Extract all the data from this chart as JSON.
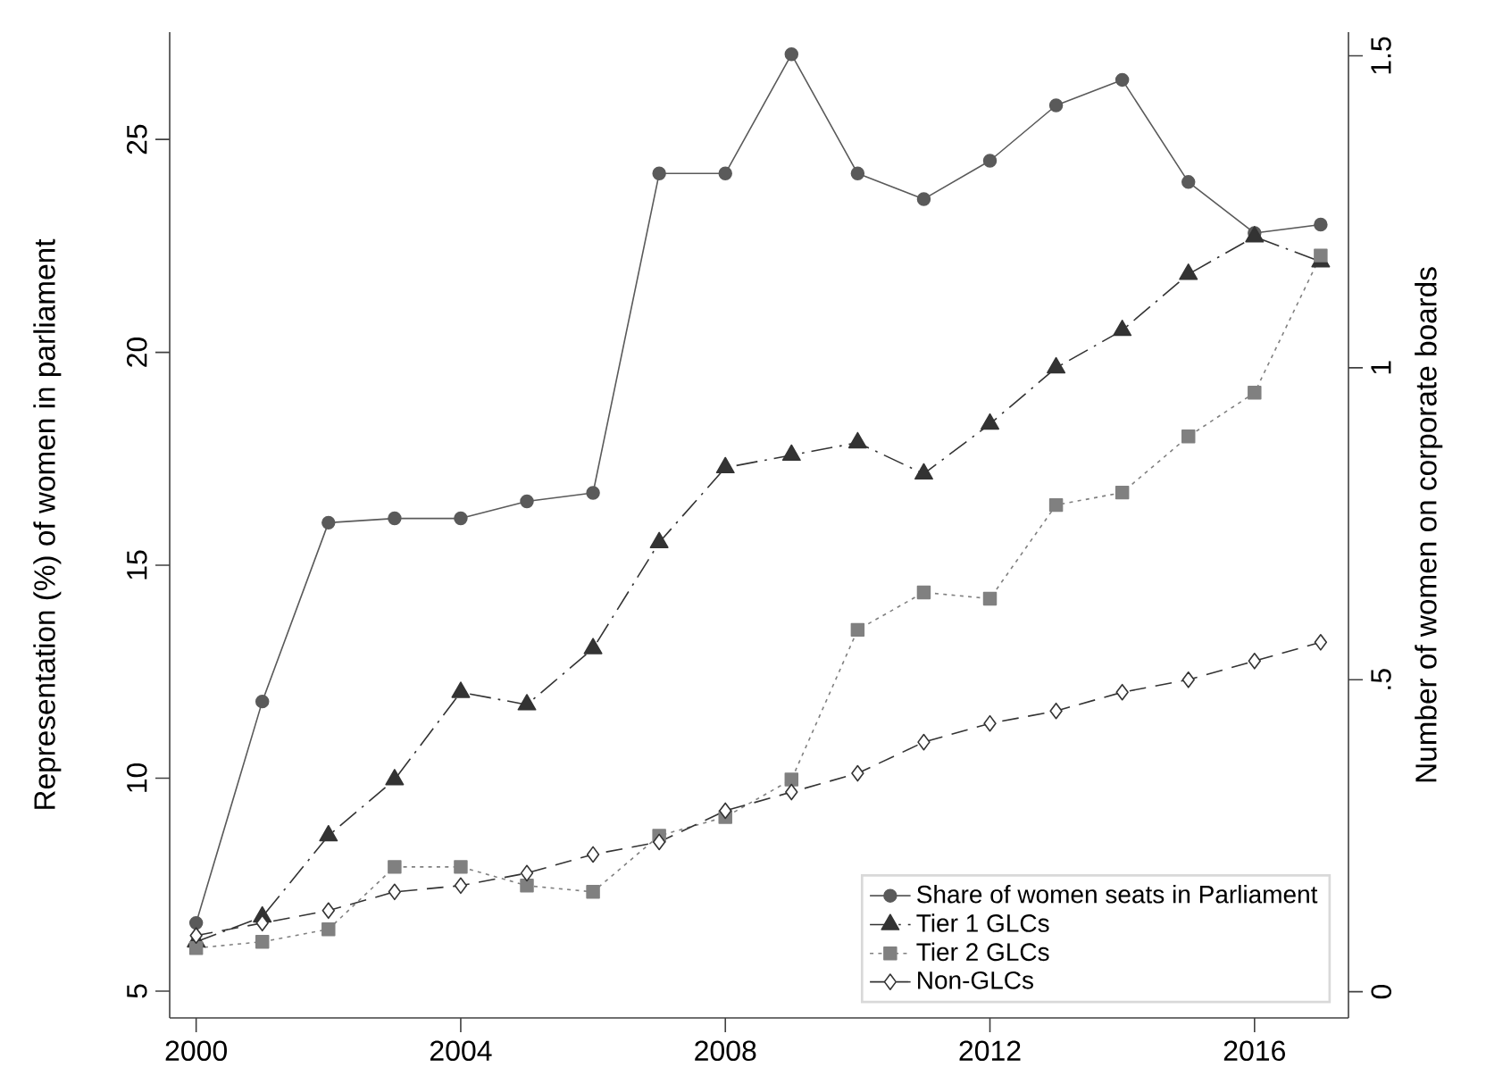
{
  "chart_data": {
    "type": "line",
    "x": [
      2000,
      2001,
      2002,
      2003,
      2004,
      2005,
      2006,
      2007,
      2008,
      2009,
      2010,
      2011,
      2012,
      2013,
      2014,
      2015,
      2016,
      2017
    ],
    "xlim": [
      1999.6,
      2017.42
    ],
    "xticks": [
      2000,
      2004,
      2008,
      2012,
      2016
    ],
    "ylabel": "Representation (%) of women in parliament",
    "y2label": "Number of women on corporate boards",
    "ylim": [
      4.37,
      27.52
    ],
    "yticks": [
      5,
      10,
      15,
      20,
      25
    ],
    "y2lim": [
      -0.042,
      1.538
    ],
    "y2ticks": [
      0,
      {
        "value": 0.5,
        "label": ".5"
      },
      1,
      1.5
    ],
    "legend": "bottom right",
    "grid": false,
    "series": [
      {
        "name": "Share of women seats in Parliament",
        "color": "#5a5a5a",
        "marker": "circle",
        "line_style": "solid",
        "values": [
          6.6,
          11.8,
          16.0,
          16.1,
          16.1,
          16.5,
          16.7,
          24.2,
          24.2,
          27.0,
          24.2,
          23.6,
          24.5,
          25.8,
          26.4,
          24.0,
          22.8,
          23.0
        ]
      },
      {
        "name": "Tier 1 GLCs",
        "color": "#333333",
        "marker": "triangle",
        "line_style": "dashdot",
        "axis": "y2",
        "values": [
          0.08,
          0.12,
          0.25,
          0.34,
          0.48,
          0.46,
          0.55,
          0.72,
          0.84,
          0.86,
          0.88,
          0.83,
          0.91,
          1.0,
          1.06,
          1.15,
          1.21,
          1.17
        ]
      },
      {
        "name": "Tier 2 GLCs",
        "color": "#808080",
        "marker": "square",
        "line_style": "dotted",
        "axis": "y2",
        "values": [
          0.07,
          0.08,
          0.1,
          0.2,
          0.2,
          0.17,
          0.16,
          0.25,
          0.28,
          0.34,
          0.58,
          0.64,
          0.63,
          0.78,
          0.8,
          0.89,
          0.96,
          1.18
        ]
      },
      {
        "name": "Non-GLCs",
        "color": "#333333",
        "marker": "diamond",
        "line_style": "dashed",
        "axis": "y2",
        "values": [
          0.09,
          0.11,
          0.13,
          0.16,
          0.17,
          0.19,
          0.22,
          0.24,
          0.29,
          0.32,
          0.35,
          0.4,
          0.43,
          0.45,
          0.48,
          0.5,
          0.53,
          0.56
        ]
      }
    ]
  }
}
